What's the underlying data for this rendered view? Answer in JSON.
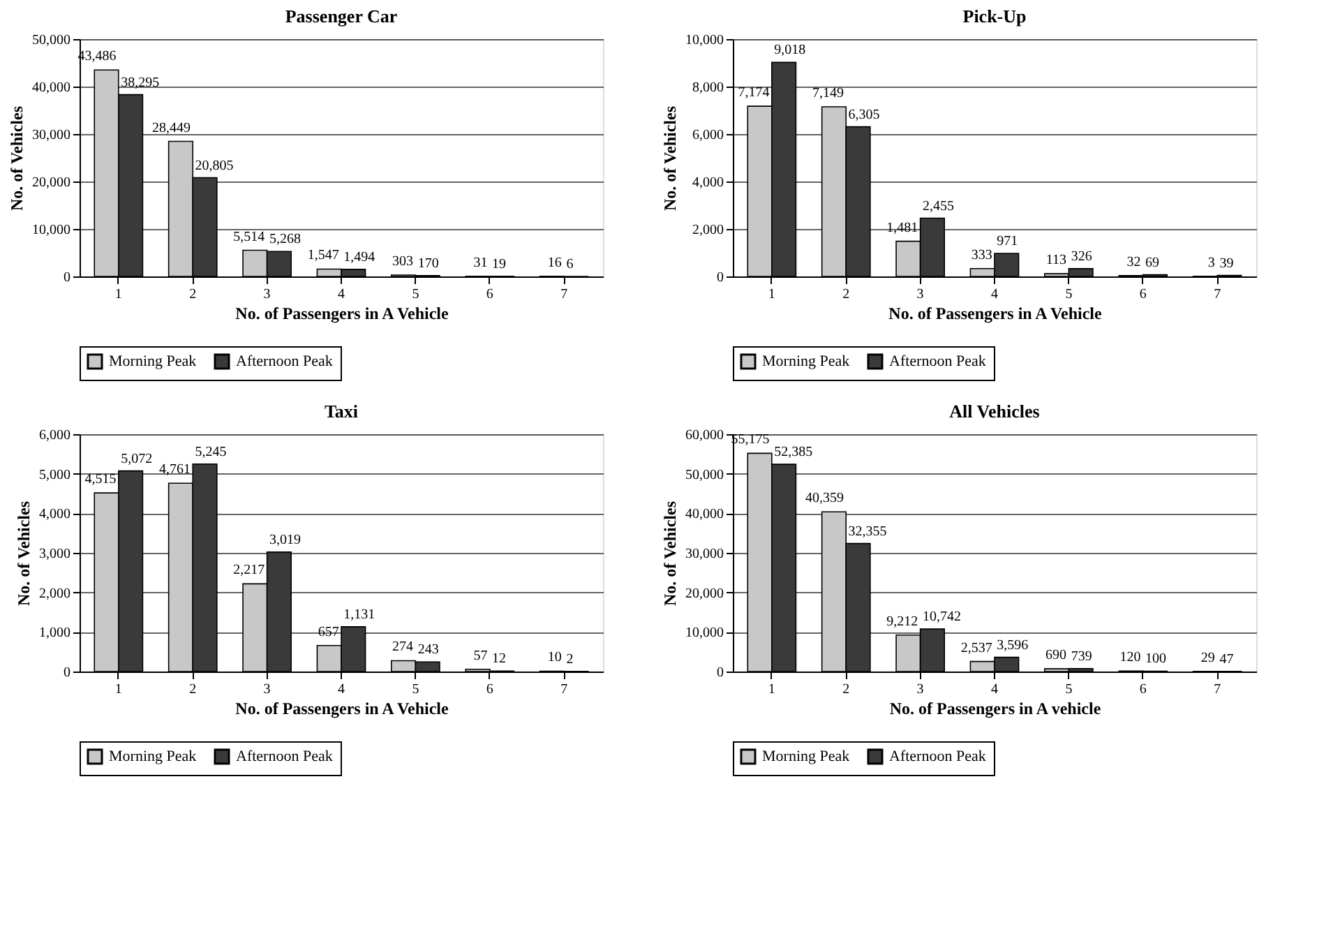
{
  "chart_data": [
    {
      "type": "bar",
      "title": "Passenger Car",
      "xlabel": "No. of Passengers in A Vehicle",
      "ylabel": "No. of Vehicles",
      "categories": [
        "1",
        "2",
        "3",
        "4",
        "5",
        "6",
        "7"
      ],
      "series": [
        {
          "name": "Morning Peak",
          "color": "#c8c8c8",
          "values": [
            43486,
            28449,
            5514,
            1547,
            303,
            31,
            16
          ],
          "value_labels": [
            "43,486",
            "28,449",
            "5,514",
            "1,547",
            "303",
            "31",
            "16"
          ]
        },
        {
          "name": "Afternoon Peak",
          "color": "#3a3a3a",
          "values": [
            38295,
            20805,
            5268,
            1494,
            170,
            19,
            6
          ],
          "value_labels": [
            "38,295",
            "20,805",
            "5,268",
            "1,494",
            "170",
            "19",
            "6"
          ]
        }
      ],
      "ylim": [
        0,
        50000
      ],
      "yticks": [
        {
          "value": 0,
          "label": "0"
        },
        {
          "value": 10000,
          "label": "10,000"
        },
        {
          "value": 20000,
          "label": "20,000"
        },
        {
          "value": 30000,
          "label": "30,000"
        },
        {
          "value": 40000,
          "label": "40,000"
        },
        {
          "value": 50000,
          "label": "50,000"
        }
      ],
      "grid": "y",
      "legend": "bottom"
    },
    {
      "type": "bar",
      "title": "Pick-Up",
      "xlabel": "No. of Passengers in A Vehicle",
      "ylabel": "No. of Vehicles",
      "categories": [
        "1",
        "2",
        "3",
        "4",
        "5",
        "6",
        "7"
      ],
      "series": [
        {
          "name": "Morning Peak",
          "color": "#c8c8c8",
          "values": [
            7174,
            7149,
            1481,
            333,
            113,
            32,
            3
          ],
          "value_labels": [
            "7,174",
            "7,149",
            "1,481",
            "333",
            "113",
            "32",
            "3"
          ]
        },
        {
          "name": "Afternoon Peak",
          "color": "#3a3a3a",
          "values": [
            9018,
            6305,
            2455,
            971,
            326,
            69,
            39
          ],
          "value_labels": [
            "9,018",
            "6,305",
            "2,455",
            "971",
            "326",
            "69",
            "39"
          ]
        }
      ],
      "ylim": [
        0,
        10000
      ],
      "yticks": [
        {
          "value": 0,
          "label": "0"
        },
        {
          "value": 2000,
          "label": "2,000"
        },
        {
          "value": 4000,
          "label": "4,000"
        },
        {
          "value": 6000,
          "label": "6,000"
        },
        {
          "value": 8000,
          "label": "8,000"
        },
        {
          "value": 10000,
          "label": "10,000"
        }
      ],
      "grid": "y",
      "legend": "bottom"
    },
    {
      "type": "bar",
      "title": "Taxi",
      "xlabel": "No. of Passengers in A Vehicle",
      "ylabel": "No. of Vehicles",
      "categories": [
        "1",
        "2",
        "3",
        "4",
        "5",
        "6",
        "7"
      ],
      "series": [
        {
          "name": "Morning Peak",
          "color": "#c8c8c8",
          "values": [
            4515,
            4761,
            2217,
            657,
            274,
            57,
            10
          ],
          "value_labels": [
            "4,515",
            "4,761",
            "2,217",
            "657",
            "274",
            "57",
            "10"
          ]
        },
        {
          "name": "Afternoon Peak",
          "color": "#3a3a3a",
          "values": [
            5072,
            5245,
            3019,
            1131,
            243,
            12,
            2
          ],
          "value_labels": [
            "5,072",
            "5,245",
            "3,019",
            "1,131",
            "243",
            "12",
            "2"
          ]
        }
      ],
      "ylim": [
        0,
        6000
      ],
      "yticks": [
        {
          "value": 0,
          "label": "0"
        },
        {
          "value": 1000,
          "label": "1,000"
        },
        {
          "value": 2000,
          "label": "2,000"
        },
        {
          "value": 3000,
          "label": "3,000"
        },
        {
          "value": 4000,
          "label": "4,000"
        },
        {
          "value": 5000,
          "label": "5,000"
        },
        {
          "value": 6000,
          "label": "6,000"
        }
      ],
      "grid": "y",
      "legend": "bottom"
    },
    {
      "type": "bar",
      "title": "All Vehicles",
      "xlabel": "No. of Passengers in A vehicle",
      "ylabel": "No. of Vehicles",
      "categories": [
        "1",
        "2",
        "3",
        "4",
        "5",
        "6",
        "7"
      ],
      "series": [
        {
          "name": "Morning Peak",
          "color": "#c8c8c8",
          "values": [
            55175,
            40359,
            9212,
            2537,
            690,
            120,
            29
          ],
          "value_labels": [
            "55,175",
            "40,359",
            "9,212",
            "2,537",
            "690",
            "120",
            "29"
          ]
        },
        {
          "name": "Afternoon Peak",
          "color": "#3a3a3a",
          "values": [
            52385,
            32355,
            10742,
            3596,
            739,
            100,
            47
          ],
          "value_labels": [
            "52,385",
            "32,355",
            "10,742",
            "3,596",
            "739",
            "100",
            "47"
          ]
        }
      ],
      "ylim": [
        0,
        60000
      ],
      "yticks": [
        {
          "value": 0,
          "label": "0"
        },
        {
          "value": 10000,
          "label": "10,000"
        },
        {
          "value": 20000,
          "label": "20,000"
        },
        {
          "value": 30000,
          "label": "30,000"
        },
        {
          "value": 40000,
          "label": "40,000"
        },
        {
          "value": 50000,
          "label": "50,000"
        },
        {
          "value": 60000,
          "label": "60,000"
        }
      ],
      "grid": "y",
      "legend": "bottom"
    }
  ]
}
